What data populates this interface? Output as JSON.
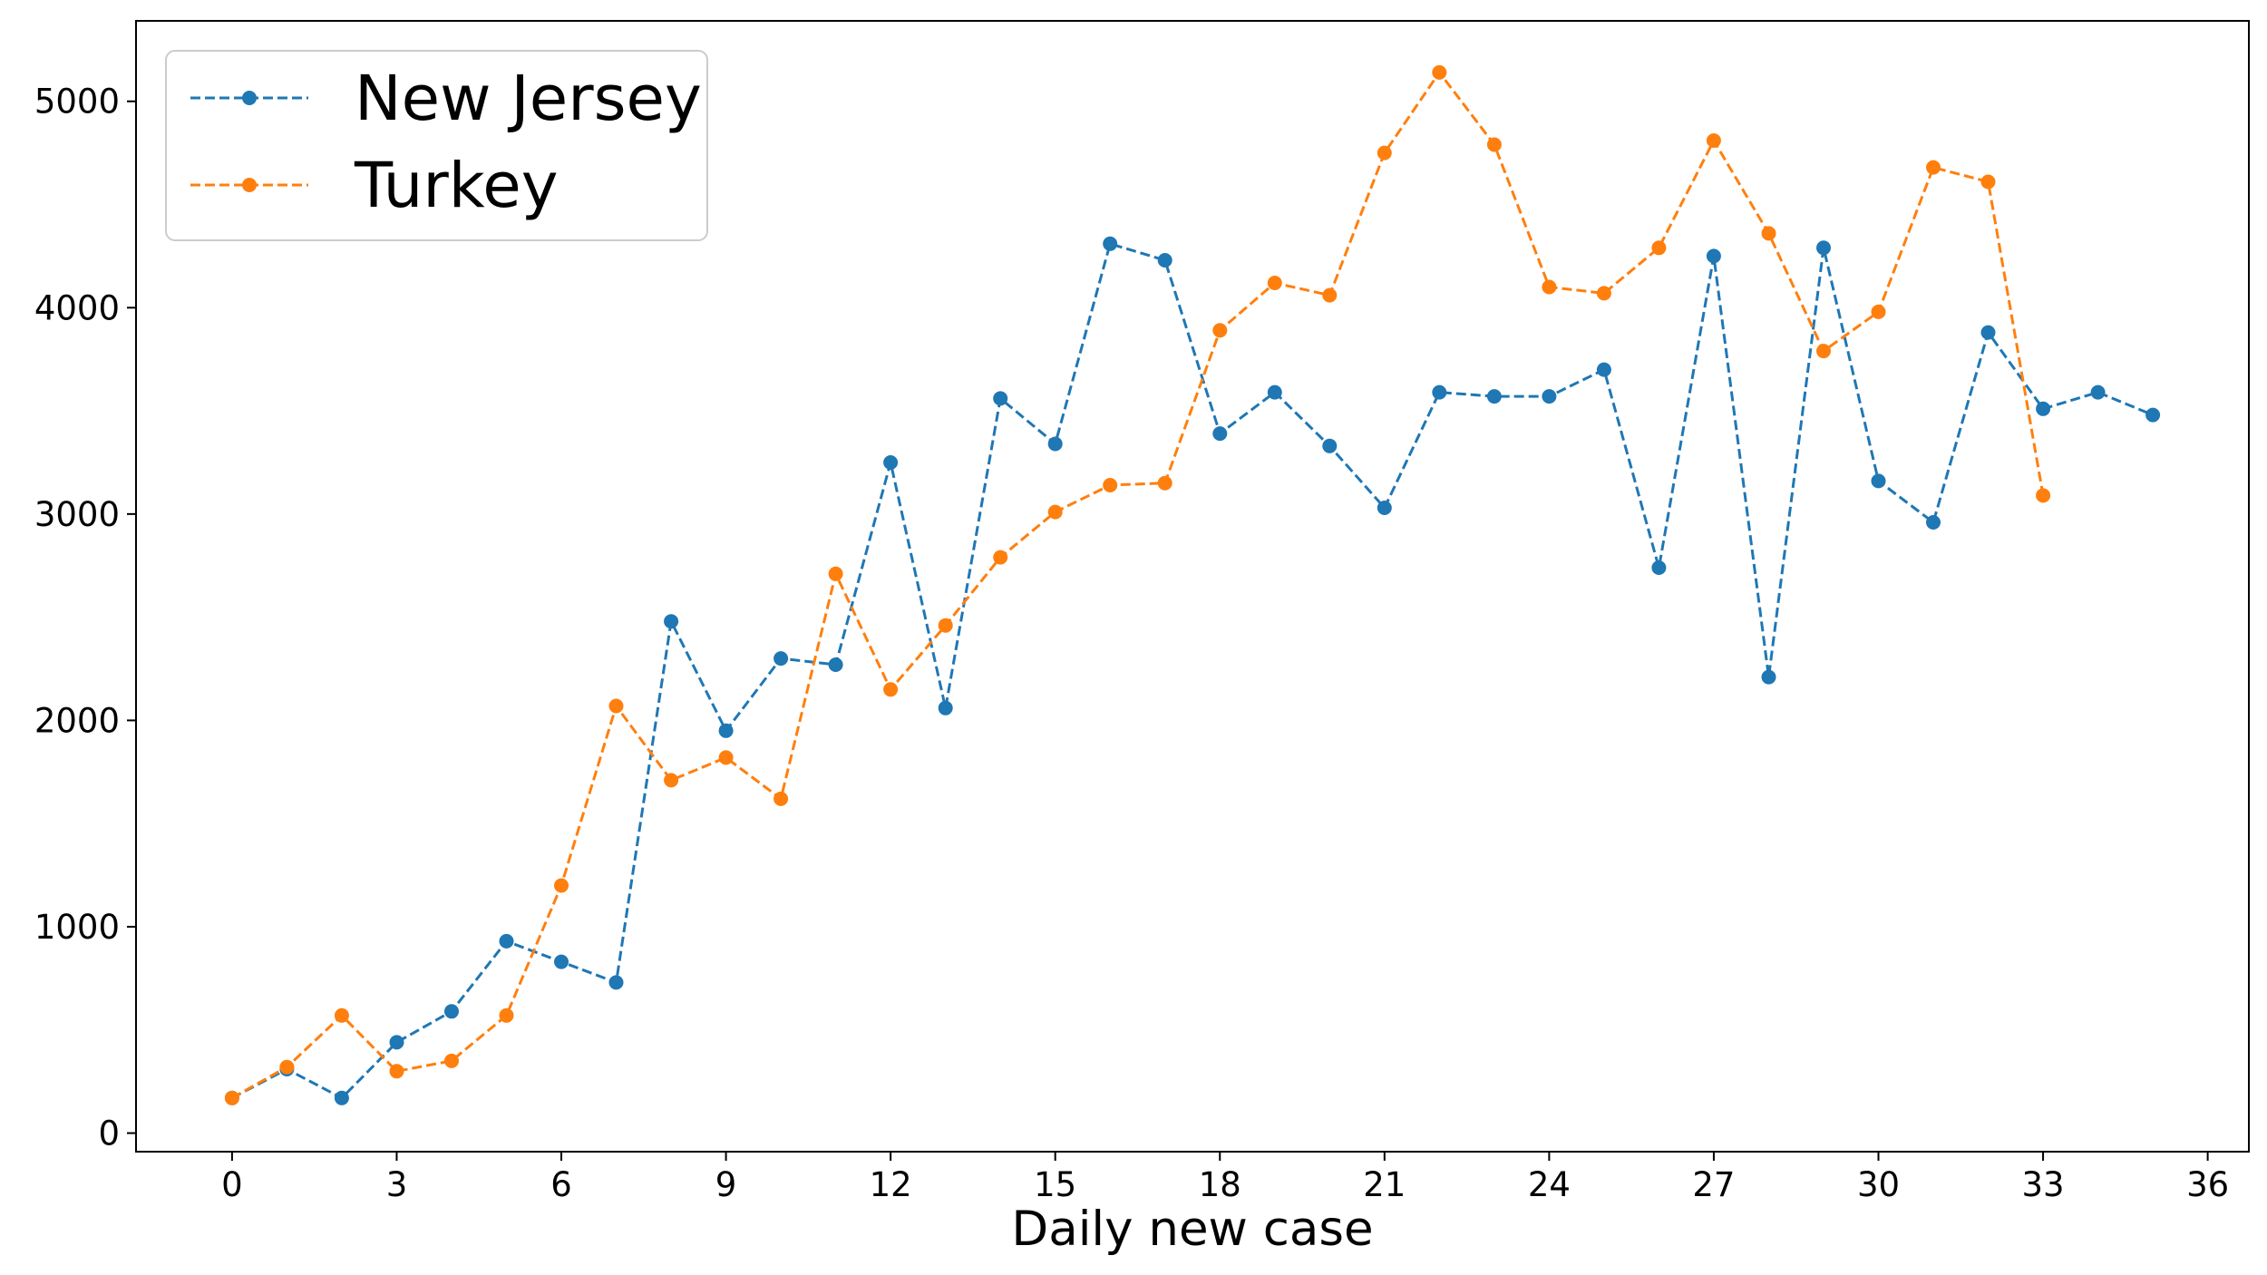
{
  "chart_data": {
    "type": "line",
    "title": "",
    "xlabel": "Daily new case",
    "ylabel": "",
    "xlim": [
      -1.75,
      36.75
    ],
    "ylim": [
      -90,
      5390
    ],
    "xticks": [
      0,
      3,
      6,
      9,
      12,
      15,
      18,
      21,
      24,
      27,
      30,
      33,
      36
    ],
    "yticks": [
      0,
      1000,
      2000,
      3000,
      4000,
      5000
    ],
    "grid": false,
    "legend_position": "top-left",
    "series": [
      {
        "name": "New Jersey",
        "color": "#1f77b4",
        "line_style": "dashed",
        "marker": "circle",
        "x": [
          0,
          1,
          2,
          3,
          4,
          5,
          6,
          7,
          8,
          9,
          10,
          11,
          12,
          13,
          14,
          15,
          16,
          17,
          18,
          19,
          20,
          21,
          22,
          23,
          24,
          25,
          26,
          27,
          28,
          29,
          30,
          31,
          32,
          33,
          34,
          35
        ],
        "y": [
          170,
          310,
          170,
          440,
          590,
          930,
          830,
          730,
          2480,
          1950,
          2300,
          2270,
          3250,
          2060,
          3560,
          3340,
          4310,
          4230,
          3390,
          3590,
          3330,
          3030,
          3590,
          3570,
          3570,
          3700,
          2740,
          4250,
          2210,
          4290,
          3160,
          2960,
          3880,
          3510,
          3590,
          3480
        ]
      },
      {
        "name": "Turkey",
        "color": "#ff7f0e",
        "line_style": "dashed",
        "marker": "circle",
        "x": [
          0,
          1,
          2,
          3,
          4,
          5,
          6,
          7,
          8,
          9,
          10,
          11,
          12,
          13,
          14,
          15,
          16,
          17,
          18,
          19,
          20,
          21,
          22,
          23,
          24,
          25,
          26,
          27,
          28,
          29,
          30,
          31,
          32,
          33
        ],
        "y": [
          170,
          320,
          570,
          300,
          350,
          570,
          1200,
          2070,
          1710,
          1820,
          1620,
          2710,
          2150,
          2460,
          2790,
          3010,
          3140,
          3150,
          3890,
          4120,
          4060,
          4750,
          5140,
          4790,
          4100,
          4070,
          4290,
          4810,
          4360,
          3790,
          3980,
          4680,
          4610,
          3090
        ]
      }
    ]
  }
}
